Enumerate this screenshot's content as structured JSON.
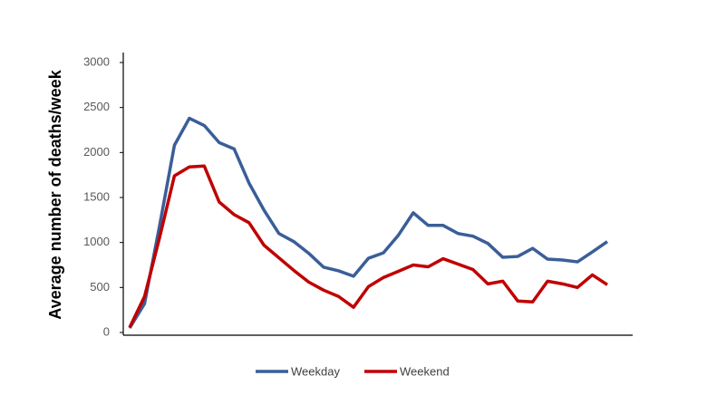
{
  "chart_data": {
    "type": "line",
    "y_label": "Average number of deaths/week",
    "categories": [
      null,
      null,
      null,
      null,
      null,
      null,
      null,
      null,
      null,
      null,
      null,
      null,
      null,
      null,
      null,
      null,
      null,
      null,
      null,
      null,
      null,
      null,
      null,
      null,
      null,
      null,
      null,
      null,
      null,
      null,
      null,
      null,
      null
    ],
    "series": [
      {
        "name": "Weekday",
        "color": "#3a5e98",
        "values": [
          50,
          320,
          1180,
          2080,
          2380,
          2300,
          2110,
          2040,
          1660,
          1360,
          1100,
          1010,
          880,
          725,
          685,
          625,
          825,
          885,
          1080,
          1330,
          1190,
          1190,
          1100,
          1070,
          990,
          835,
          845,
          935,
          815,
          805,
          785,
          895,
          1010
        ]
      },
      {
        "name": "Weekend",
        "color": "#c00000",
        "values": [
          55,
          400,
          1050,
          1740,
          1840,
          1850,
          1450,
          1310,
          1220,
          970,
          830,
          690,
          560,
          470,
          400,
          280,
          510,
          610,
          680,
          750,
          730,
          820,
          760,
          700,
          540,
          570,
          350,
          340,
          570,
          540,
          500,
          640,
          530
        ]
      }
    ],
    "ylim": [
      0,
      3000
    ],
    "yticks": [
      0,
      500,
      1000,
      1500,
      2000,
      2500,
      3000
    ],
    "grid": false,
    "legend": "bottom"
  }
}
